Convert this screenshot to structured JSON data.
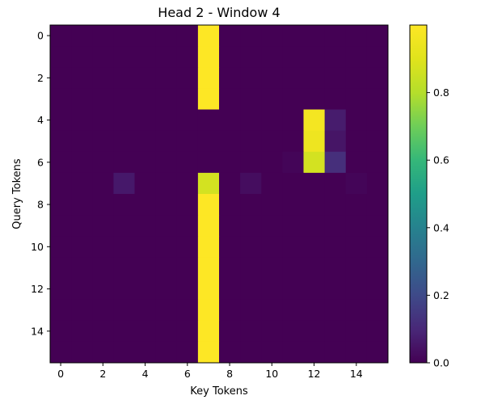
{
  "chart_data": {
    "type": "heatmap",
    "title": "Head 2 - Window 4",
    "xlabel": "Key Tokens",
    "ylabel": "Query Tokens",
    "x_ticks": [
      "0",
      "2",
      "4",
      "6",
      "8",
      "10",
      "12",
      "14"
    ],
    "y_ticks": [
      "0",
      "2",
      "4",
      "6",
      "8",
      "10",
      "12",
      "14"
    ],
    "n_rows": 16,
    "n_cols": 16,
    "colormap": "viridis",
    "colorbar": {
      "vmin": 0.0,
      "vmax": 1.0,
      "ticks": [
        "0.0",
        "0.2",
        "0.4",
        "0.6",
        "0.8"
      ]
    },
    "values": [
      [
        0,
        0,
        0,
        0,
        0,
        0,
        0,
        1.0,
        0,
        0,
        0,
        0,
        0,
        0,
        0,
        0
      ],
      [
        0,
        0,
        0,
        0,
        0,
        0,
        0,
        1.0,
        0,
        0,
        0,
        0,
        0,
        0,
        0,
        0
      ],
      [
        0,
        0,
        0,
        0,
        0,
        0,
        0,
        1.0,
        0,
        0,
        0,
        0,
        0,
        0,
        0,
        0
      ],
      [
        0,
        0,
        0,
        0,
        0,
        0,
        0,
        1.0,
        0,
        0,
        0,
        0,
        0,
        0,
        0,
        0
      ],
      [
        0,
        0,
        0,
        0,
        0,
        0,
        0,
        0,
        0,
        0,
        0,
        0,
        0.97,
        0.07,
        0,
        0
      ],
      [
        0,
        0,
        0,
        0,
        0,
        0,
        0,
        0,
        0,
        0,
        0,
        0,
        0.95,
        0.05,
        0,
        0
      ],
      [
        0,
        0,
        0,
        0,
        0,
        0,
        0,
        0,
        0,
        0,
        0,
        0.01,
        0.87,
        0.12,
        0,
        0
      ],
      [
        0,
        0,
        0,
        0.06,
        0,
        0,
        0,
        0.87,
        0,
        0.03,
        0,
        0,
        0,
        0,
        0.01,
        0
      ],
      [
        0,
        0,
        0,
        0,
        0,
        0,
        0,
        1.0,
        0,
        0,
        0,
        0,
        0,
        0,
        0,
        0
      ],
      [
        0,
        0,
        0,
        0,
        0,
        0,
        0,
        1.0,
        0,
        0,
        0,
        0,
        0,
        0,
        0,
        0
      ],
      [
        0,
        0,
        0,
        0,
        0,
        0,
        0,
        1.0,
        0,
        0,
        0,
        0,
        0,
        0,
        0,
        0
      ],
      [
        0,
        0,
        0,
        0,
        0,
        0,
        0,
        1.0,
        0,
        0,
        0,
        0,
        0,
        0,
        0,
        0
      ],
      [
        0,
        0,
        0,
        0,
        0,
        0,
        0,
        1.0,
        0,
        0,
        0,
        0,
        0,
        0,
        0,
        0
      ],
      [
        0,
        0,
        0,
        0,
        0,
        0,
        0,
        1.0,
        0,
        0,
        0,
        0,
        0,
        0,
        0,
        0
      ],
      [
        0,
        0,
        0,
        0,
        0,
        0,
        0,
        1.0,
        0,
        0,
        0,
        0,
        0,
        0,
        0,
        0
      ],
      [
        0,
        0,
        0,
        0,
        0,
        0,
        0,
        1.0,
        0,
        0,
        0,
        0,
        0,
        0,
        0,
        0
      ]
    ]
  }
}
